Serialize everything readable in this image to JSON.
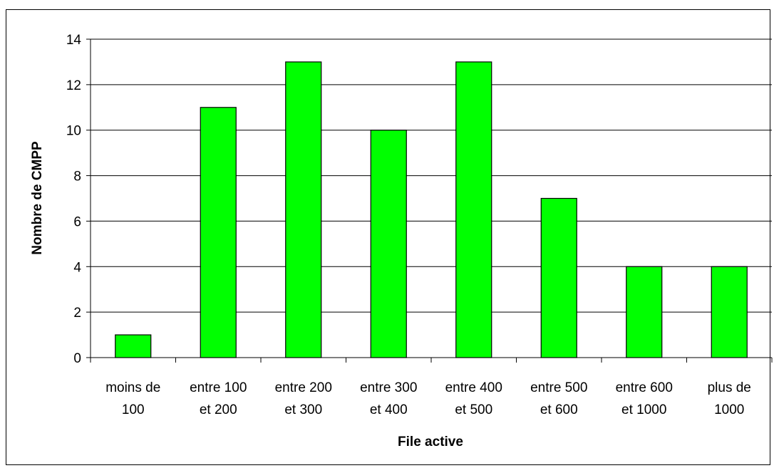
{
  "chart_data": {
    "type": "bar",
    "title": "",
    "xlabel": "File active",
    "ylabel": "Nombre de CMPP",
    "categories": [
      [
        "moins de",
        "100"
      ],
      [
        "entre 100",
        "et 200"
      ],
      [
        "entre 200",
        "et 300"
      ],
      [
        "entre 300",
        "et 400"
      ],
      [
        "entre 400",
        "et 500"
      ],
      [
        "entre 500",
        "et 600"
      ],
      [
        "entre 600",
        "et 1000"
      ],
      [
        "plus de",
        "1000"
      ]
    ],
    "values": [
      1,
      11,
      13,
      10,
      13,
      7,
      4,
      4
    ],
    "ylim": [
      0,
      14
    ],
    "yticks": [
      0,
      2,
      4,
      6,
      8,
      10,
      12,
      14
    ],
    "grid": true,
    "legend": "none",
    "colors": {
      "bar_fill": "#00ff00",
      "bar_stroke": "#000000",
      "grid": "#000000",
      "background": "#ffffff"
    }
  }
}
